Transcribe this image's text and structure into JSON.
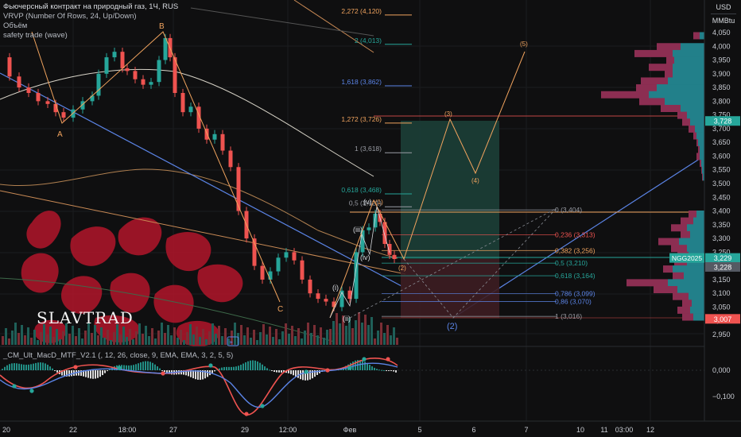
{
  "legend": {
    "title": "Фьючерсный контракт на природный газ, 1Ч, RUS",
    "vrvp": "VRVP (Number Of Rows, 24, Up/Down)",
    "volume": "Объём",
    "safety": "safety trade (wave)"
  },
  "macd_label": "_CM_Ult_MacD_MTF_V2.1 (, 12, 26, close, 9, EMA, EMA, 3, 2, 5, 5)",
  "unit_top": "USD",
  "unit_bottom": "MMBtu",
  "brand": "SLAVTRAD",
  "colors": {
    "bg": "#0f0f10",
    "up": "#26a69a",
    "down": "#ef5350",
    "blue_line": "#5b84e6",
    "orange_line": "#f0a35e",
    "profit_zone": "#1c3f37",
    "loss_zone": "#3d1d22",
    "vp_up": "#22808a",
    "vp_down": "#8c2e52",
    "ornament": "#b2162a"
  },
  "price_axis": {
    "ticks": [
      "4,050",
      "4,000",
      "3,950",
      "3,900",
      "3,850",
      "3,800",
      "3,750",
      "3,700",
      "3,650",
      "3,600",
      "3,550",
      "3,500",
      "3,450",
      "3,400",
      "3,350",
      "3,300",
      "3,250",
      "3,200",
      "3,150",
      "3,100",
      "3,050",
      "3,000",
      "2,950"
    ],
    "badges": [
      {
        "label": "3,728",
        "color": "#26a69a"
      },
      {
        "label": "3,229",
        "color": "#26a69a"
      },
      {
        "label": "3,228",
        "color": "#555a63"
      },
      {
        "label": "3,007",
        "color": "#ef5350"
      }
    ],
    "symbol_badge": "NGG2025"
  },
  "macd_axis": {
    "ticks": [
      "0,000",
      "−0,100"
    ]
  },
  "time_axis": {
    "ticks": [
      "20",
      "22",
      "18:00",
      "27",
      "29",
      "12:00",
      "Фев",
      "5",
      "6",
      "7",
      "10",
      "11",
      "03:00",
      "12"
    ]
  },
  "fib_upper": [
    {
      "label": "2,272 (4,120)",
      "color": "#f0a35e"
    },
    {
      "label": "2 (4,013)",
      "color": "#26a69a"
    },
    {
      "label": "1,618 (3,862)",
      "color": "#5b84e6"
    },
    {
      "label": "1,272 (3,726)",
      "color": "#f0a35e"
    },
    {
      "label": "1 (3,618)",
      "color": "#9a9da5"
    },
    {
      "label": "0,618 (3,468)",
      "color": "#26a69a"
    },
    {
      "label": "0,5 (3,421)",
      "color": "#9a9da5"
    }
  ],
  "fib_lower": [
    {
      "label": "0 (3,404)",
      "color": "#9a9da5"
    },
    {
      "label": "0,236 (3,313)",
      "color": "#ef5350"
    },
    {
      "label": "0,382 (3,256)",
      "color": "#f0a35e"
    },
    {
      "label": "0,5 (3,210)",
      "color": "#26a69a"
    },
    {
      "label": "0,618 (3,164)",
      "color": "#26a69a"
    },
    {
      "label": "0,786 (3,099)",
      "color": "#5b84e6"
    },
    {
      "label": "0,86 (3,070)",
      "color": "#5b84e6"
    },
    {
      "label": "1 (3,016)",
      "color": "#9a9da5"
    }
  ],
  "wave_labels": {
    "A": "A",
    "B": "B",
    "C": "C",
    "i": "(i)",
    "ii": "(ii)",
    "iii": "(iii)",
    "iv": "(iv)",
    "v": "(v)",
    "w1": "(1)",
    "w2": "(2)",
    "w3": "(3)",
    "w4": "(4)",
    "w5": "(5)",
    "w2big": "(2)"
  }
}
